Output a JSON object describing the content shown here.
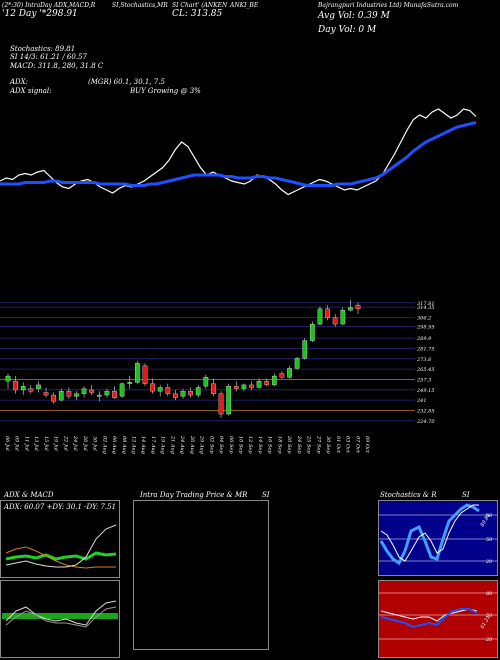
{
  "header": {
    "top_left_1": "(2*:30) IntraDay ADX,MACD,R",
    "top_left_2": "'12 Day '*298.91",
    "center_1": "SI,Stochastics,MR",
    "center_2": "SI Chart' (ANKEN",
    "center_3": "CL: 313.85",
    "symbol": "ANKI_BE",
    "company": "Bajrangpuri Industries Ltd) MunafaSutra.com",
    "avg_vol": "Avg Vol: 0.39 M",
    "day_vol": "Day Vol: 0   M"
  },
  "indicators": {
    "stochastics": "Stochastics: 89.81",
    "si_line": "SI 14/3: 61.21 / 60.57",
    "macd": "MACD: 311.8, 280, 31.8 C",
    "adx": "ADX:",
    "adx_values": "(MGR) 60.1, 30.1, 7.5",
    "adx_signal_label": "ADX  signal:",
    "adx_signal": "BUY Growing @ 3%"
  },
  "price_labels": [
    "317.81",
    "314.35",
    "306.2",
    "298.95",
    "289.9",
    "281.75",
    "273.6",
    "265.45",
    "257.3",
    "249.15",
    "241",
    "232.85",
    "224.70"
  ],
  "date_labels": [
    "06 Jul",
    "09 Jul",
    "11 Jul",
    "13 Jul",
    "15 Jul",
    "19 Jul",
    "22 Jul",
    "24 Jul",
    "26 Jul",
    "30 Jul",
    "02 Aug",
    "06 Aug",
    "08 Aug",
    "12 Aug",
    "14 Aug",
    "17 Aug",
    "19 Aug",
    "21 Aug",
    "24 Aug",
    "26 Aug",
    "29 Aug",
    "02 Sep",
    "04 Sep",
    "06 Sep",
    "10 Sep",
    "12 Sep",
    "14 Sep",
    "16 Sep",
    "18 Sep",
    "20 Sep",
    "24 Sep",
    "25 Sep",
    "27 Sep",
    "30 Sep",
    "01 Oct",
    "03 Oct",
    "07 Oct",
    "09 Oct"
  ],
  "panels": {
    "adx_macd_title": "ADX  & MACD",
    "intraday_title": "Intra  Day Trading Price  & MR",
    "intraday_si": "SI",
    "stoch_title": "Stochastics & R",
    "stoch_si": "SI",
    "adx_readout": "ADX: 60.07  +DY: 30.1  -DY: 7.51",
    "stoch_levels": [
      "80",
      "50",
      "20"
    ],
    "rsi_levels": [
      "80",
      "50",
      "20"
    ],
    "stoch_value": "89.81",
    "rsi_value": "61.21"
  },
  "chart_data": [
    {
      "type": "candlestick",
      "title": "",
      "ylim": [
        219,
        320
      ],
      "y_ticks": [
        317.81,
        314.35,
        306.2,
        298.95,
        289.9,
        281.75,
        273.6,
        265.45,
        257.3,
        249.15,
        241,
        232.85,
        224.7
      ],
      "candles": [
        {
          "o": 256,
          "h": 262,
          "l": 250,
          "c": 260
        },
        {
          "o": 256,
          "h": 260,
          "l": 246,
          "c": 249
        },
        {
          "o": 249,
          "h": 255,
          "l": 245,
          "c": 252
        },
        {
          "o": 250,
          "h": 253,
          "l": 246,
          "c": 248
        },
        {
          "o": 250,
          "h": 256,
          "l": 247,
          "c": 253
        },
        {
          "o": 247,
          "h": 251,
          "l": 243,
          "c": 245
        },
        {
          "o": 245,
          "h": 247,
          "l": 238,
          "c": 240
        },
        {
          "o": 241,
          "h": 250,
          "l": 240,
          "c": 248
        },
        {
          "o": 248,
          "h": 251,
          "l": 242,
          "c": 244
        },
        {
          "o": 244,
          "h": 248,
          "l": 241,
          "c": 246
        },
        {
          "o": 246,
          "h": 252,
          "l": 243,
          "c": 250
        },
        {
          "o": 249,
          "h": 253,
          "l": 245,
          "c": 247
        },
        {
          "o": 244,
          "h": 248,
          "l": 240,
          "c": 245
        },
        {
          "o": 245,
          "h": 250,
          "l": 243,
          "c": 248
        },
        {
          "o": 248,
          "h": 252,
          "l": 242,
          "c": 243
        },
        {
          "o": 244,
          "h": 255,
          "l": 243,
          "c": 254
        },
        {
          "o": 254,
          "h": 260,
          "l": 250,
          "c": 255
        },
        {
          "o": 255,
          "h": 272,
          "l": 254,
          "c": 270
        },
        {
          "o": 268,
          "h": 270,
          "l": 252,
          "c": 254
        },
        {
          "o": 254,
          "h": 258,
          "l": 246,
          "c": 248
        },
        {
          "o": 248,
          "h": 253,
          "l": 244,
          "c": 251
        },
        {
          "o": 251,
          "h": 254,
          "l": 244,
          "c": 246
        },
        {
          "o": 246,
          "h": 249,
          "l": 241,
          "c": 243
        },
        {
          "o": 244,
          "h": 250,
          "l": 242,
          "c": 248
        },
        {
          "o": 248,
          "h": 251,
          "l": 243,
          "c": 245
        },
        {
          "o": 245,
          "h": 253,
          "l": 243,
          "c": 251
        },
        {
          "o": 252,
          "h": 261,
          "l": 250,
          "c": 259
        },
        {
          "o": 254,
          "h": 258,
          "l": 244,
          "c": 246
        },
        {
          "o": 246,
          "h": 248,
          "l": 227,
          "c": 230
        },
        {
          "o": 230,
          "h": 254,
          "l": 229,
          "c": 252
        },
        {
          "o": 252,
          "h": 256,
          "l": 248,
          "c": 250
        },
        {
          "o": 250,
          "h": 254,
          "l": 248,
          "c": 253
        },
        {
          "o": 253,
          "h": 256,
          "l": 249,
          "c": 251
        },
        {
          "o": 251,
          "h": 258,
          "l": 250,
          "c": 256
        },
        {
          "o": 256,
          "h": 258,
          "l": 252,
          "c": 253
        },
        {
          "o": 253,
          "h": 262,
          "l": 252,
          "c": 260
        },
        {
          "o": 262,
          "h": 264,
          "l": 258,
          "c": 259
        },
        {
          "o": 259,
          "h": 268,
          "l": 258,
          "c": 266
        },
        {
          "o": 266,
          "h": 275,
          "l": 265,
          "c": 274
        },
        {
          "o": 274,
          "h": 290,
          "l": 273,
          "c": 288
        },
        {
          "o": 288,
          "h": 303,
          "l": 287,
          "c": 301
        },
        {
          "o": 301,
          "h": 315,
          "l": 300,
          "c": 313
        },
        {
          "o": 313,
          "h": 316,
          "l": 304,
          "c": 306
        },
        {
          "o": 306,
          "h": 309,
          "l": 299,
          "c": 301
        },
        {
          "o": 301,
          "h": 314,
          "l": 300,
          "c": 312
        },
        {
          "o": 312,
          "h": 320,
          "l": 311,
          "c": 314
        },
        {
          "o": 316,
          "h": 318,
          "l": 309,
          "c": 313
        }
      ]
    },
    {
      "type": "line",
      "title": "",
      "ylim": [
        0,
        100
      ],
      "series": [
        {
          "color": "#ffffff",
          "values": [
            46,
            48,
            47,
            50,
            51,
            50,
            52,
            53,
            49,
            45,
            42,
            41,
            44,
            46,
            47,
            45,
            42,
            40,
            38,
            41,
            43,
            42,
            44,
            46,
            49,
            52,
            55,
            60,
            67,
            72,
            69,
            62,
            55,
            50,
            52,
            50,
            48,
            46,
            45,
            44,
            46,
            50,
            49,
            47,
            44,
            40,
            37,
            39,
            41,
            43,
            45,
            47,
            46,
            44,
            42,
            40,
            41,
            40,
            42,
            44,
            46,
            50,
            57,
            64,
            72,
            80,
            87,
            90,
            88,
            92,
            94,
            91,
            88,
            90,
            94,
            93,
            89
          ]
        },
        {
          "color": "#1f4fff",
          "values": [
            44,
            44,
            44,
            44,
            45,
            45,
            45,
            45,
            46,
            46,
            45,
            45,
            45,
            45,
            45,
            45,
            44,
            44,
            44,
            44,
            44,
            43,
            43,
            43,
            44,
            44,
            45,
            46,
            47,
            48,
            49,
            50,
            50,
            50,
            50,
            50,
            49,
            49,
            48,
            48,
            48,
            49,
            49,
            48,
            48,
            47,
            46,
            45,
            44,
            43,
            43,
            43,
            43,
            43,
            44,
            44,
            44,
            45,
            46,
            47,
            48,
            50,
            53,
            56,
            59,
            62,
            66,
            69,
            72,
            74,
            76,
            78,
            80,
            82,
            83,
            84,
            85
          ]
        }
      ]
    }
  ]
}
